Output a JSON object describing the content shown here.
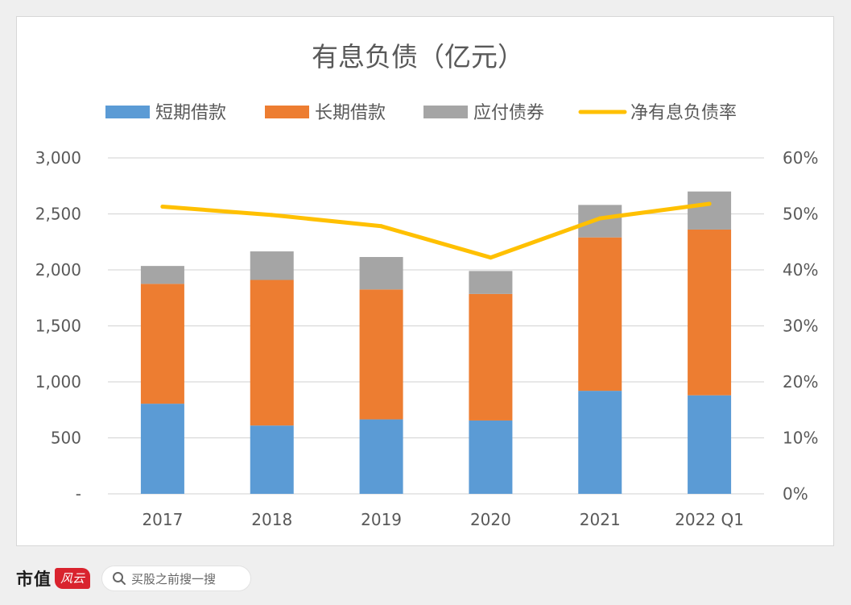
{
  "chart_data": {
    "type": "bar",
    "stacked": true,
    "title": "有息负债（亿元）",
    "categories": [
      "2017",
      "2018",
      "2019",
      "2020",
      "2021",
      "2022 Q1"
    ],
    "series": [
      {
        "name": "短期借款",
        "type": "bar",
        "color": "#5b9bd5",
        "values": [
          805,
          610,
          665,
          655,
          920,
          880
        ]
      },
      {
        "name": "长期借款",
        "type": "bar",
        "color": "#ed7d31",
        "values": [
          1070,
          1300,
          1160,
          1130,
          1370,
          1480
        ]
      },
      {
        "name": "应付债券",
        "type": "bar",
        "color": "#a5a5a5",
        "values": [
          160,
          255,
          290,
          205,
          290,
          340
        ]
      },
      {
        "name": "净有息负债率",
        "type": "line",
        "axis": "right",
        "color": "#ffc000",
        "values": [
          51.3,
          49.8,
          47.8,
          42.2,
          49.2,
          51.8
        ]
      }
    ],
    "y_left": {
      "min": 0,
      "max": 3000,
      "ticks": [
        "-",
        "500",
        "1,000",
        "1,500",
        "2,000",
        "2,500",
        "3,000"
      ]
    },
    "y_right": {
      "min": 0,
      "max": 60,
      "ticks": [
        "0%",
        "10%",
        "20%",
        "30%",
        "40%",
        "50%",
        "60%"
      ]
    },
    "grid": true,
    "legend_position": "top"
  },
  "footer": {
    "brand": "市值",
    "brand_logo_text": "风云",
    "search_text": "买股之前搜一搜"
  },
  "colors": {
    "title": "#595959",
    "axis_text": "#595959",
    "grid": "#d9d9d9"
  }
}
